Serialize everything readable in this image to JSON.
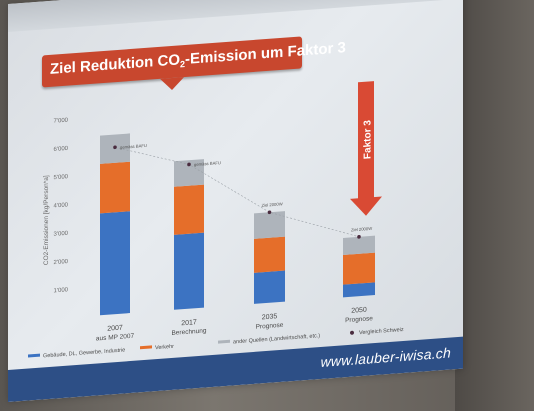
{
  "footer": {
    "url": "www.lauber-iwisa.ch"
  },
  "annotation": {
    "faktor_label": "Faktor 3"
  },
  "colors": {
    "gebaeude": "#3c73c2",
    "verkehr": "#e56e2a",
    "andere": "#aeb4bb",
    "vergleich": "#4a2c3f",
    "banner": "#c8472e",
    "footer": "#2d4f86"
  },
  "chart_data": {
    "type": "bar",
    "stacked": true,
    "title": "Ziel Reduktion CO2-Emission um Faktor 3",
    "ylabel": "CO2-Emissionen [kg/Person*a]",
    "ylim": [
      0,
      7000
    ],
    "yticks": [
      1000,
      2000,
      3000,
      4000,
      5000,
      6000,
      7000
    ],
    "ytick_labels": [
      "1'000",
      "2'000",
      "3'000",
      "4'000",
      "5'000",
      "6'000",
      "7'000"
    ],
    "categories": [
      {
        "year": "2007",
        "label": "aus MP 2007"
      },
      {
        "year": "2017",
        "label": "Berechnung"
      },
      {
        "year": "2035",
        "label": "Prognose"
      },
      {
        "year": "2050",
        "label": "Prognose"
      }
    ],
    "series": [
      {
        "name": "Gebäude, DL, Gewerbe, Industrie",
        "color": "#3c73c2",
        "values": [
          3600,
          2650,
          1100,
          450
        ]
      },
      {
        "name": "Verkehr",
        "color": "#e56e2a",
        "values": [
          1750,
          1700,
          1200,
          1050
        ]
      },
      {
        "name": "ander Quellen (Landwirtschaft, etc.)",
        "color": "#aeb4bb",
        "values": [
          1000,
          900,
          900,
          600
        ]
      }
    ],
    "markers": {
      "name": "Vergleich Schweiz",
      "values": [
        5900,
        5100,
        3200,
        2100
      ],
      "labels": [
        "gemäss BAFU",
        "gemäss BAFU",
        "Ziel 2000W",
        "Ziel 2000W"
      ]
    },
    "legend_position": "bottom",
    "grid": false
  }
}
